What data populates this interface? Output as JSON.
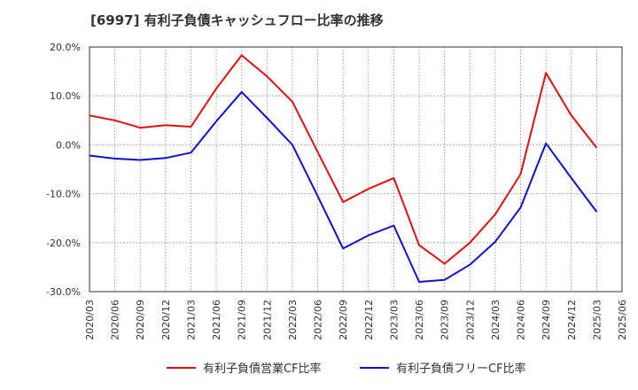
{
  "title": "[6997]  有利子負債キャッシュフロー比率の推移",
  "chart_data": {
    "type": "line",
    "title": "[6997]  有利子負債キャッシュフロー比率の推移",
    "x": [
      "2020/03",
      "2020/06",
      "2020/09",
      "2020/12",
      "2021/03",
      "2021/06",
      "2021/09",
      "2021/12",
      "2022/03",
      "2022/06",
      "2022/09",
      "2022/12",
      "2023/03",
      "2023/06",
      "2023/09",
      "2023/12",
      "2024/03",
      "2024/06",
      "2024/09",
      "2024/12",
      "2025/03",
      "2025/06"
    ],
    "ylim": [
      -30,
      20
    ],
    "yticks": [
      20,
      10,
      0,
      -10,
      -20,
      -30
    ],
    "ytick_labels": [
      "20.0%",
      "10.0%",
      "0.0%",
      "-10.0%",
      "-20.0%",
      "-30.0%"
    ],
    "grid": true,
    "legend_position": "bottom",
    "series": [
      {
        "name": "有利子負債営業CF比率",
        "color": "#e01010",
        "values": [
          6.0,
          5.0,
          3.5,
          4.0,
          3.7,
          11.5,
          18.3,
          14.0,
          8.8,
          -1.5,
          -11.7,
          -9.0,
          -6.8,
          -20.5,
          -24.3,
          -20.0,
          -14.2,
          -6.0,
          14.7,
          6.0,
          -0.6,
          null
        ]
      },
      {
        "name": "有利子負債フリーCF比率",
        "color": "#1010d0",
        "values": [
          -2.2,
          -2.8,
          -3.1,
          -2.7,
          -1.6,
          4.8,
          10.8,
          5.5,
          0.0,
          -10.5,
          -21.2,
          -18.5,
          -16.5,
          -28.0,
          -27.6,
          -24.5,
          -19.8,
          -12.8,
          0.3,
          -6.8,
          -13.7,
          null
        ]
      }
    ]
  }
}
